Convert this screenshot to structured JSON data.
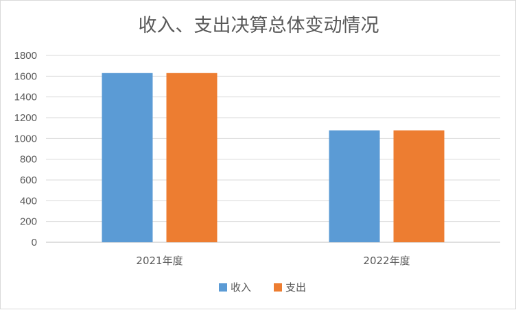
{
  "chart_data": {
    "type": "bar",
    "title": "收入、支出决算总体变动情况",
    "xlabel": "",
    "ylabel": "",
    "categories": [
      "2021年度",
      "2022年度"
    ],
    "series": [
      {
        "name": "收入",
        "values": [
          1630,
          1078
        ],
        "color": "#5b9bd5"
      },
      {
        "name": "支出",
        "values": [
          1630,
          1078
        ],
        "color": "#ed7d31"
      }
    ],
    "ylim": [
      0,
      1800
    ],
    "yticks": [
      0,
      200,
      400,
      600,
      800,
      1000,
      1200,
      1400,
      1600,
      1800
    ],
    "grid": true,
    "legend_position": "bottom"
  }
}
